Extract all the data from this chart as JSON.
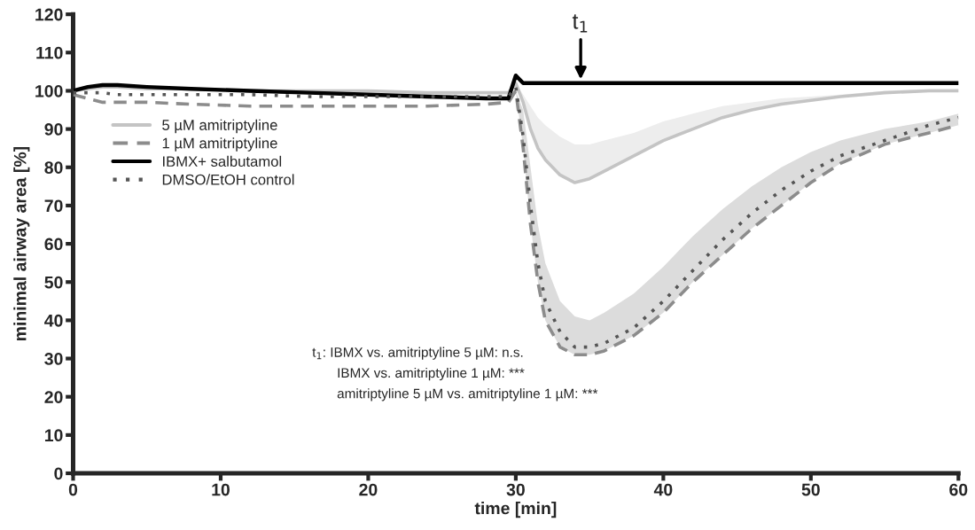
{
  "chart_data": {
    "type": "line",
    "xlabel": "time [min]",
    "ylabel": "minimal airway area [%]",
    "x": [
      0,
      1,
      2,
      3,
      5,
      8,
      12,
      16,
      20,
      24,
      28,
      29.5,
      30,
      30.5,
      31,
      31.5,
      32,
      33,
      34,
      35,
      36,
      38,
      40,
      42,
      44,
      46,
      48,
      50,
      52,
      55,
      58,
      60
    ],
    "series": [
      {
        "name": "5 µM amitriptyline",
        "color": "#c4c4c4",
        "line_style": "solid",
        "values": [
          100,
          100.5,
          101,
          101,
          100.5,
          100.5,
          100,
          100,
          100,
          99.5,
          99.5,
          99.5,
          102,
          97,
          90,
          85,
          82,
          78,
          76,
          77,
          79,
          83,
          87,
          90,
          93,
          95,
          96.5,
          97.5,
          98.5,
          99.5,
          100,
          100
        ],
        "lower": [
          100,
          100.5,
          101,
          101,
          100.5,
          100.5,
          100,
          100,
          100,
          99.5,
          99.5,
          99.5,
          102,
          97,
          90,
          85,
          82,
          78,
          76,
          77,
          79,
          83,
          87,
          90,
          93,
          95,
          96.5,
          97.5,
          98.5,
          99.5,
          100,
          100
        ],
        "upper": [
          100,
          100.5,
          101,
          101,
          100.5,
          100.5,
          100,
          100,
          100,
          99.5,
          99.5,
          99.5,
          102,
          99,
          96,
          93,
          91,
          88,
          86,
          86,
          87,
          89,
          92,
          94,
          96,
          97,
          98,
          98.5,
          99,
          100,
          100.5,
          100.5
        ]
      },
      {
        "name": "1 µM amitriptyline",
        "color": "#8c8c8c",
        "line_style": "dashed",
        "values": [
          99,
          98,
          97,
          97,
          97,
          96.5,
          96,
          96,
          96,
          96,
          96.5,
          97,
          100,
          85,
          65,
          50,
          40,
          33,
          31,
          31,
          32,
          36,
          42,
          50,
          57,
          64,
          70,
          76,
          81,
          86,
          89,
          91
        ],
        "lower": [
          99,
          98,
          97,
          97,
          97,
          96.5,
          96,
          96,
          96,
          96,
          96.5,
          97,
          100,
          85,
          65,
          50,
          40,
          33,
          31,
          31,
          32,
          36,
          42,
          50,
          57,
          64,
          70,
          76,
          81,
          86,
          89,
          91
        ],
        "upper": [
          99,
          98,
          97,
          97,
          97,
          96.5,
          96,
          96,
          96,
          96,
          96.5,
          97,
          100,
          95,
          80,
          65,
          55,
          45,
          41,
          40,
          42,
          47,
          54,
          62,
          69,
          75,
          80,
          84,
          87,
          90,
          92,
          94
        ]
      },
      {
        "name": "IBMX+ salbutamol",
        "color": "#000000",
        "line_style": "solid",
        "values": [
          100,
          101,
          101.5,
          101.5,
          101,
          100.5,
          100,
          99.5,
          99,
          98.5,
          98,
          98,
          104,
          102,
          102,
          102,
          102,
          102,
          102,
          102,
          102,
          102,
          102,
          102,
          102,
          102,
          102,
          102,
          102,
          102,
          102,
          102
        ]
      },
      {
        "name": "DMSO/EtOH control",
        "color": "#555555",
        "line_style": "dotted",
        "values": [
          99.5,
          99.5,
          99.5,
          99,
          99,
          99,
          99,
          98.5,
          98.5,
          98.5,
          98.5,
          98.5,
          101,
          88,
          70,
          55,
          45,
          37,
          33,
          33,
          34,
          38,
          45,
          53,
          61,
          68,
          74,
          79,
          83,
          87,
          91,
          93
        ]
      }
    ],
    "annotations": [
      {
        "text": "t$_{1}$",
        "x": 34.4,
        "y": 103
      },
      "t$_{1}$: IBMX vs. amitriptyline 5 µM: n.s.",
      "IBMX vs. amitriptyline 1 µM: ***",
      "amitriptyline 5 µM vs. amitriptyline 1 µM: ***"
    ],
    "xlim": [
      0,
      60
    ],
    "xticks": [
      0,
      10,
      20,
      30,
      40,
      50,
      60
    ],
    "ylim": [
      0,
      120
    ],
    "yticks": [
      0,
      10,
      20,
      30,
      40,
      50,
      60,
      70,
      80,
      90,
      100,
      110,
      120
    ],
    "grid": false,
    "legend": "top left",
    "marker": "none"
  }
}
